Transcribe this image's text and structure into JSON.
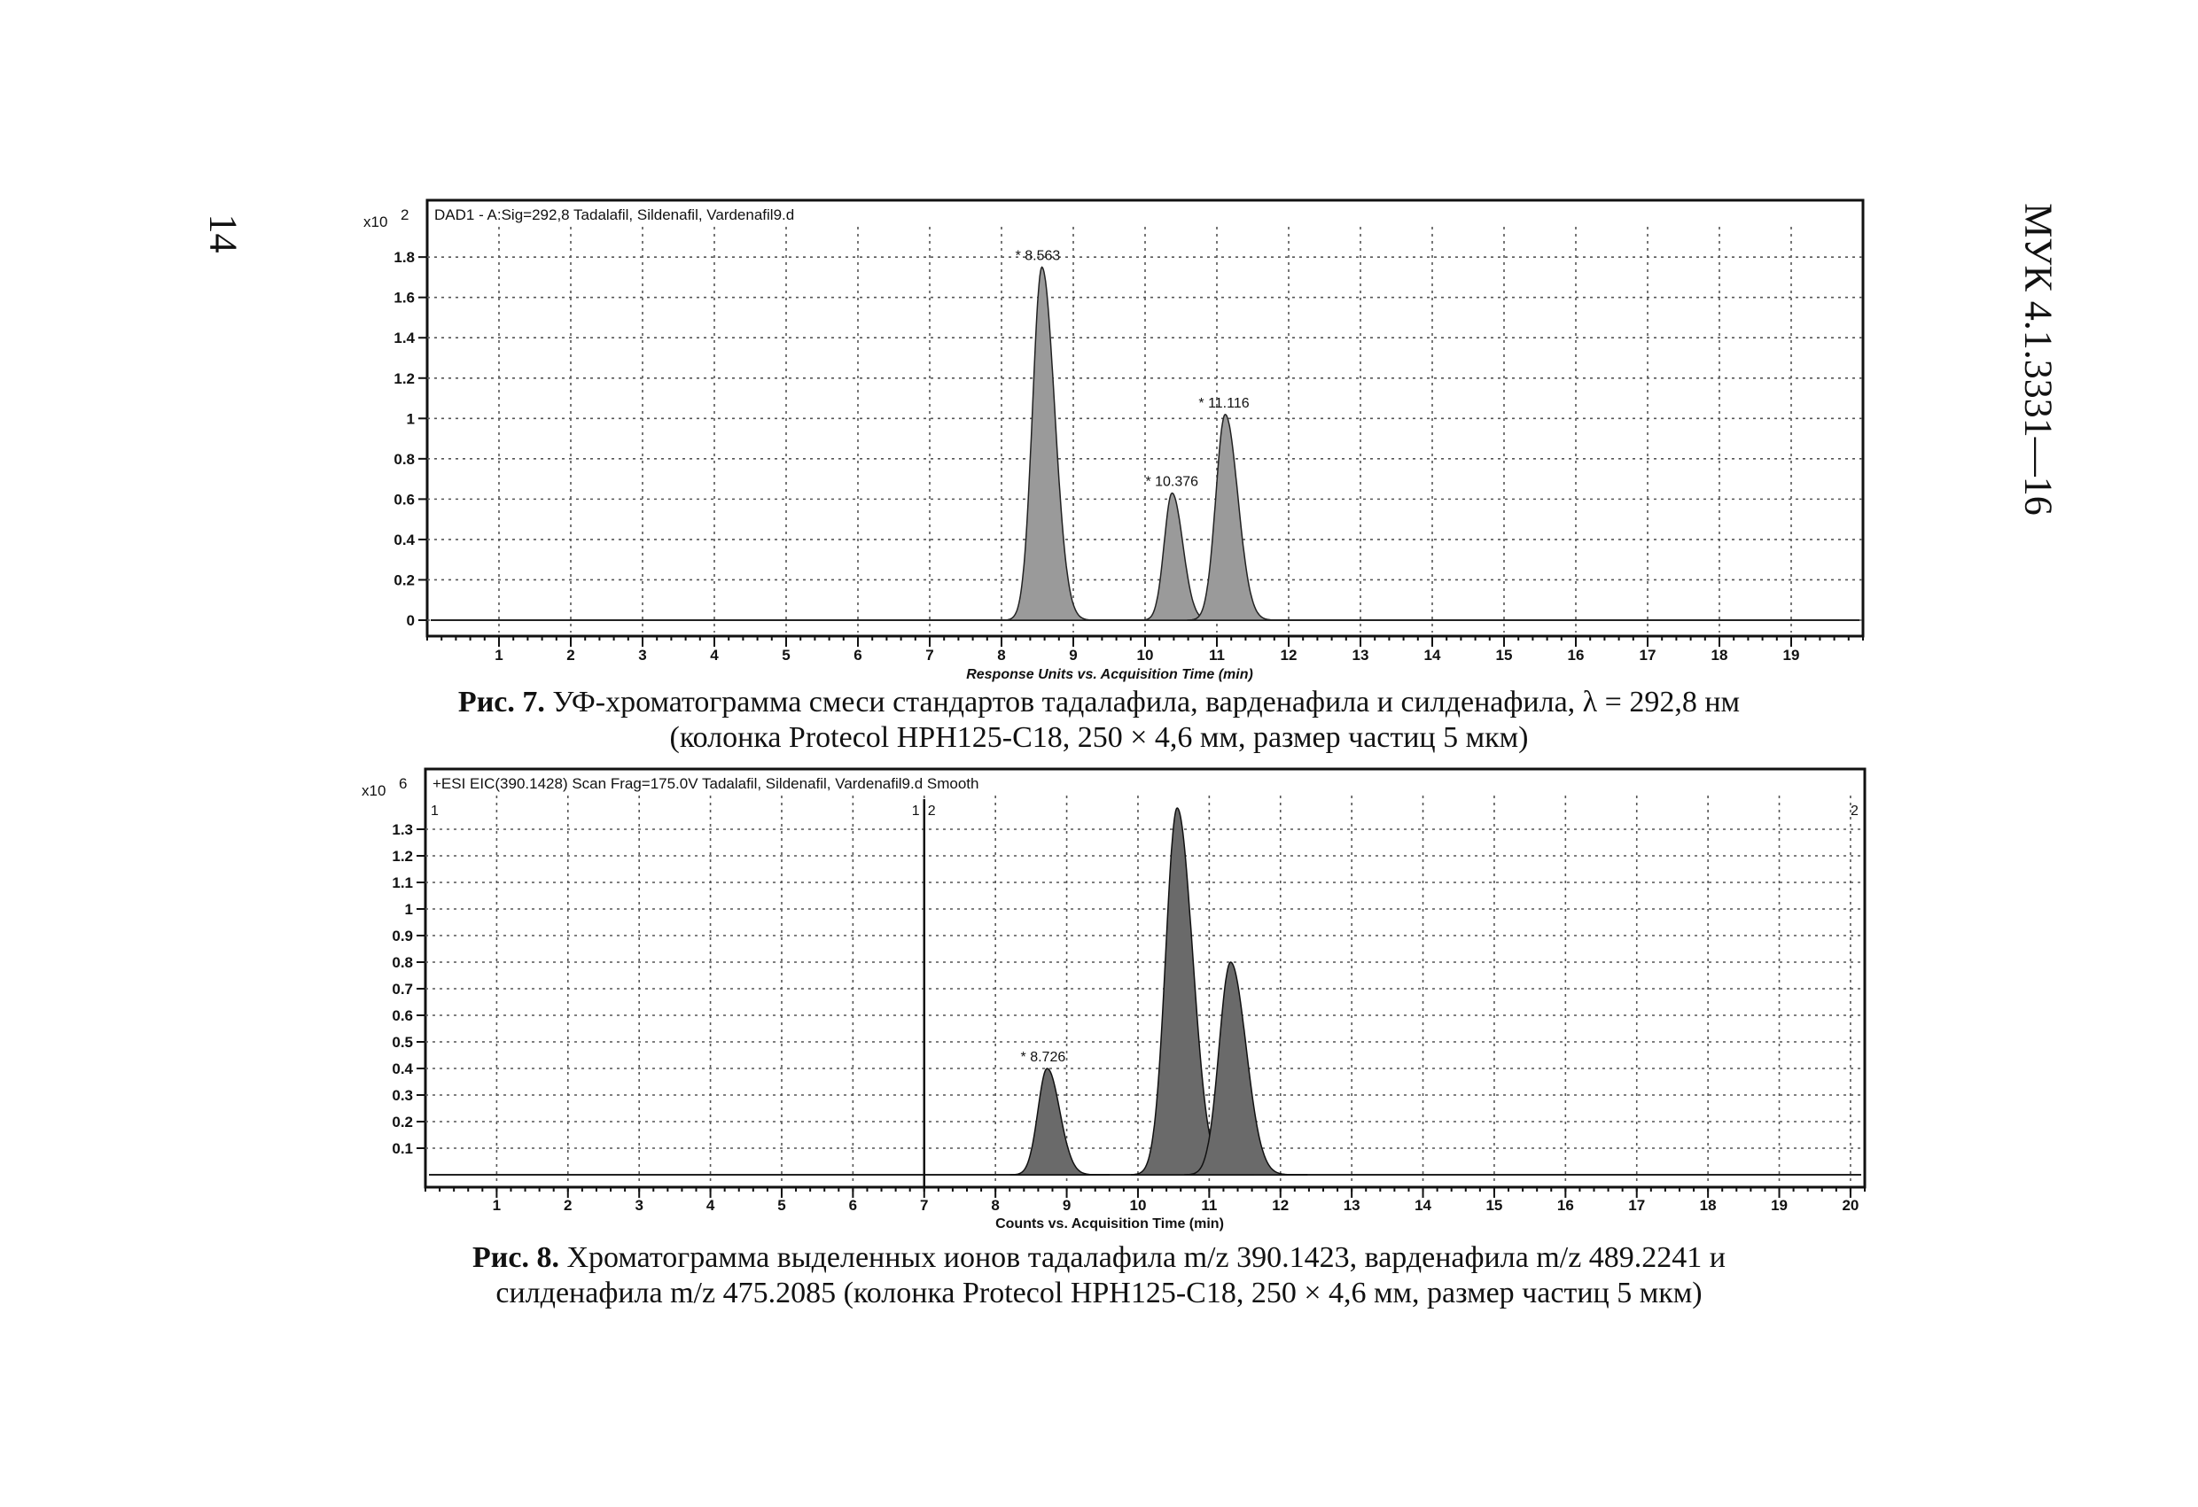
{
  "page": {
    "number": "14",
    "doc_code": "МУК 4.1.3331—16"
  },
  "captions": {
    "fig7_label": "Рис. 7.",
    "fig7_text_line1": "УФ-хроматограмма смеси стандартов тадалафила, варденафила и силденафила, λ = 292,8 нм",
    "fig7_text_line2": "(колонка Protecol HPH125-C18, 250 × 4,6 мм, размер частиц 5 мкм)",
    "fig8_label": "Рис. 8.",
    "fig8_text_line1": "Хроматограмма выделенных ионов тадалафила m/z 390.1423, варденафила m/z 489.2241 и",
    "fig8_text_line2": "силденафила m/z 475.2085 (колонка Protecol HPH125-C18, 250 × 4,6 мм, размер частиц 5 мкм)"
  },
  "chart_data": [
    {
      "type": "line",
      "subtype": "chromatogram",
      "header": "DAD1 - A:Sig=292,8 Tadalafil, Sildenafil, Vardenafil9.d",
      "y_multiplier": "x10",
      "y_multiplier_exp": "2",
      "xlabel": "Response Units vs. Acquisition Time (min)",
      "ylabel": "",
      "xlim": [
        0,
        20
      ],
      "ylim": [
        0,
        1.95
      ],
      "x_ticks": [
        1,
        2,
        3,
        4,
        5,
        6,
        7,
        8,
        9,
        10,
        11,
        12,
        13,
        14,
        15,
        16,
        17,
        18,
        19
      ],
      "y_ticks": [
        0,
        0.2,
        0.4,
        0.6,
        0.8,
        1,
        1.2,
        1.4,
        1.6,
        1.8
      ],
      "y_tick_labels": [
        "0",
        "0.2",
        "0.4",
        "0.6",
        "0.8",
        "1",
        "1.2",
        "1.4",
        "1.6",
        "1.8"
      ],
      "grid": true,
      "peaks": [
        {
          "rt": 8.563,
          "height": 1.75,
          "width": 0.13,
          "label": "* 8.563"
        },
        {
          "rt": 10.376,
          "height": 0.63,
          "width": 0.11,
          "label": "* 10.376"
        },
        {
          "rt": 11.116,
          "height": 1.02,
          "width": 0.13,
          "label": "* 11.116"
        }
      ]
    },
    {
      "type": "line",
      "subtype": "chromatogram",
      "header": "+ESI EIC(390.1428) Scan Frag=175.0V Tadalafil, Sildenafil, Vardenafil9.d  Smooth",
      "y_multiplier": "x10",
      "y_multiplier_exp": "6",
      "xlabel": "Counts vs. Acquisition Time (min)",
      "ylabel": "",
      "xlim": [
        0,
        20.2
      ],
      "ylim": [
        0,
        1.42
      ],
      "x_ticks": [
        1,
        2,
        3,
        4,
        5,
        6,
        7,
        8,
        9,
        10,
        11,
        12,
        13,
        14,
        15,
        16,
        17,
        18,
        19,
        20
      ],
      "y_ticks": [
        0.1,
        0.2,
        0.3,
        0.4,
        0.5,
        0.6,
        0.7,
        0.8,
        0.9,
        1,
        1.1,
        1.2,
        1.3
      ],
      "y_tick_labels": [
        "0.1",
        "0.2",
        "0.3",
        "0.4",
        "0.5",
        "0.6",
        "0.7",
        "0.8",
        "0.9",
        "1",
        "1.1",
        "1.2",
        "1.3"
      ],
      "grid": true,
      "markers": [
        {
          "x": 7.0,
          "label_left": "1",
          "label_right": "2"
        }
      ],
      "edge_labels": {
        "left": "1",
        "right": "2"
      },
      "peaks": [
        {
          "rt": 8.726,
          "height": 0.4,
          "width": 0.13,
          "label": "* 8.726"
        },
        {
          "rt": 10.55,
          "height": 1.38,
          "width": 0.16,
          "label": ""
        },
        {
          "rt": 11.3,
          "height": 0.8,
          "width": 0.16,
          "label": ""
        }
      ]
    }
  ]
}
